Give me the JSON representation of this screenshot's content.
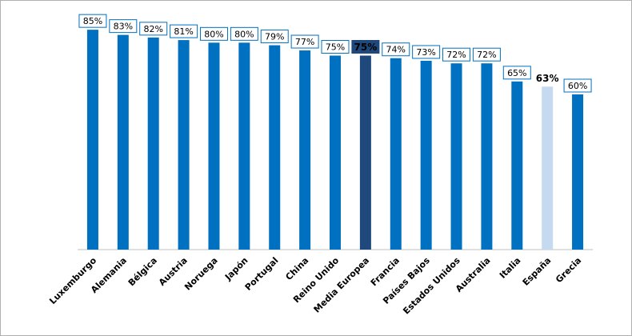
{
  "chart_data": {
    "type": "bar",
    "categories": [
      "Luxemburgo",
      "Alemania",
      "Bélgica",
      "Austria",
      "Noruega",
      "Japón",
      "Portugal",
      "China",
      "Reino Unido",
      "Media Europea",
      "Francia",
      "Países Bajos",
      "Estados Unidos",
      "Australia",
      "Italia",
      "España",
      "Grecia"
    ],
    "values": [
      85,
      83,
      82,
      81,
      80,
      80,
      79,
      77,
      75,
      75,
      74,
      73,
      72,
      72,
      65,
      63,
      60
    ],
    "value_labels": [
      "85%",
      "83%",
      "82%",
      "81%",
      "80%",
      "80%",
      "79%",
      "77%",
      "75%",
      "75%",
      "74%",
      "73%",
      "72%",
      "72%",
      "65%",
      "63%",
      "60%"
    ],
    "color": "#0070c0",
    "colors": [
      "#0070c0",
      "#0070c0",
      "#0070c0",
      "#0070c0",
      "#0070c0",
      "#0070c0",
      "#0070c0",
      "#0070c0",
      "#0070c0",
      "#1f497d",
      "#0070c0",
      "#0070c0",
      "#0070c0",
      "#0070c0",
      "#0070c0",
      "#c5d9f1",
      "#0070c0"
    ],
    "ylim": [
      0,
      90
    ]
  }
}
